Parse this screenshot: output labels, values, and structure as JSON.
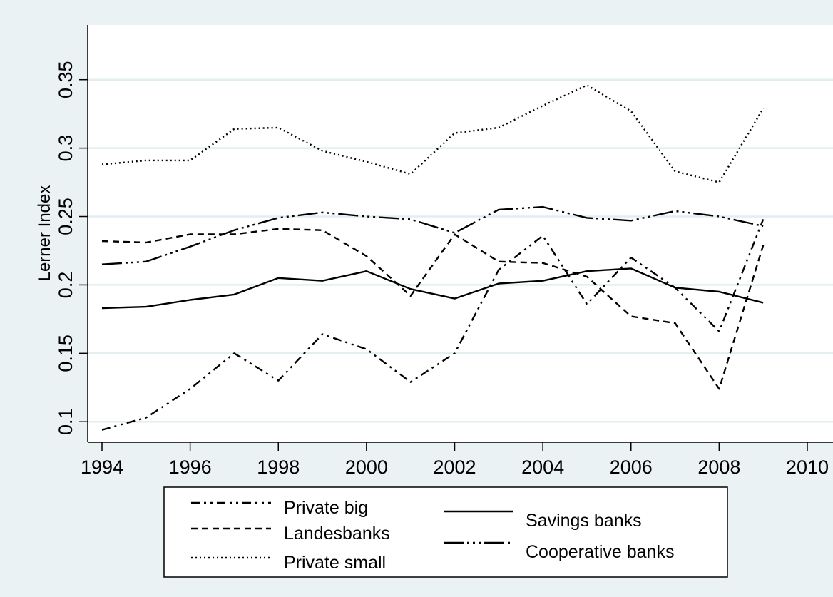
{
  "chart_data": {
    "type": "line",
    "title": "",
    "xlabel": "",
    "ylabel": "Lerner Index",
    "xlim": [
      1994,
      2010
    ],
    "ylim": [
      0.085,
      0.39
    ],
    "x_ticks": [
      1994,
      1996,
      1998,
      2000,
      2002,
      2004,
      2006,
      2008,
      2010
    ],
    "y_ticks": [
      0.1,
      0.15,
      0.2,
      0.25,
      0.3,
      0.35
    ],
    "y_tick_labels": [
      "0.1",
      "0.15",
      "0.2",
      "0.25",
      "0.3",
      "0.35"
    ],
    "grid": "horizontal",
    "legend_position": "bottom",
    "x": [
      1994,
      1995,
      1996,
      1997,
      1998,
      1999,
      2000,
      2001,
      2002,
      2003,
      2004,
      2005,
      2006,
      2007,
      2008,
      2009
    ],
    "series": [
      {
        "name": "Private big",
        "dash": "12,6,3,6,3,6",
        "values": [
          0.094,
          0.103,
          0.124,
          0.15,
          0.13,
          0.164,
          0.153,
          0.129,
          0.15,
          0.211,
          0.236,
          0.186,
          0.22,
          0.198,
          0.166,
          0.248
        ]
      },
      {
        "name": "Landesbanks",
        "dash": "9,6",
        "values": [
          0.232,
          0.231,
          0.237,
          0.237,
          0.241,
          0.24,
          0.221,
          0.192,
          0.237,
          0.217,
          0.216,
          0.206,
          0.177,
          0.172,
          0.124,
          0.229
        ]
      },
      {
        "name": "Private small",
        "dash": "2,4",
        "values": [
          0.288,
          0.291,
          0.291,
          0.314,
          0.315,
          0.298,
          0.29,
          0.281,
          0.311,
          0.315,
          0.331,
          0.346,
          0.327,
          0.283,
          0.275,
          0.329
        ]
      },
      {
        "name": "Savings banks",
        "dash": "",
        "values": [
          0.183,
          0.184,
          0.189,
          0.193,
          0.205,
          0.203,
          0.21,
          0.197,
          0.19,
          0.201,
          0.203,
          0.21,
          0.212,
          0.198,
          0.195,
          0.187
        ]
      },
      {
        "name": "Cooperative banks",
        "dash": "28,5,3,5,3,5,3,5",
        "values": [
          0.215,
          0.217,
          0.228,
          0.24,
          0.249,
          0.253,
          0.25,
          0.248,
          0.238,
          0.255,
          0.257,
          0.249,
          0.247,
          0.254,
          0.25,
          0.243
        ]
      }
    ],
    "legend": {
      "left": [
        "Private big",
        "Landesbanks",
        "Private small"
      ],
      "right": [
        "Savings banks",
        "Cooperative banks"
      ]
    }
  }
}
